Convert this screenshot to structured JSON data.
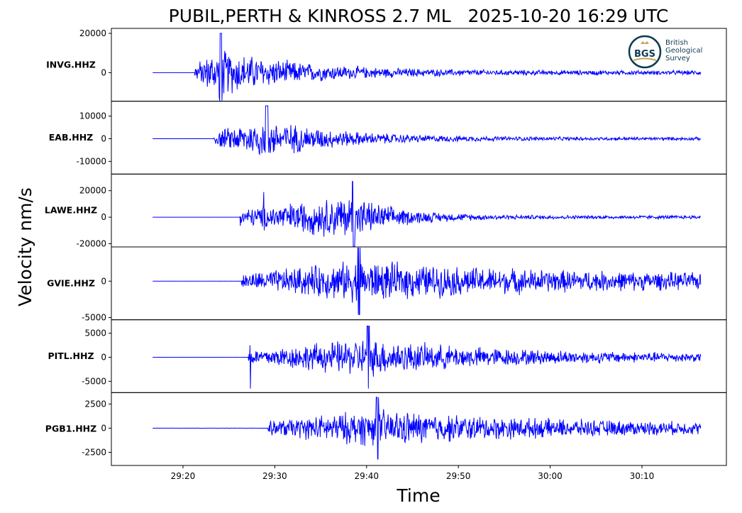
{
  "chart_data": {
    "type": "line",
    "title": "PUBIL,PERTH & KINROSS 2.7 ML   2025-10-20 16:29 UTC",
    "xlabel": "Time",
    "ylabel": "Velocity nm/s",
    "line_color": "#0000ff",
    "x_unit": "seconds after 16:29:00",
    "xlim": [
      12.2,
      79.2
    ],
    "x_ticks": [
      {
        "v": 20,
        "label": "29:20"
      },
      {
        "v": 30,
        "label": "29:30"
      },
      {
        "v": 40,
        "label": "29:40"
      },
      {
        "v": 50,
        "label": "29:50"
      },
      {
        "v": 60,
        "label": "30:00"
      },
      {
        "v": 70,
        "label": "30:10"
      }
    ],
    "trace_start": 16.7,
    "trace_end": 76.4,
    "logo": {
      "abbr": "BGS",
      "text": [
        "British",
        "Geological",
        "Survey"
      ],
      "color": "#0d3b4f",
      "accent": "#c8a45a"
    },
    "series": [
      {
        "name": "INVG.HHZ",
        "ylim": [
          -14545,
          22545
        ],
        "yticks": [
          {
            "v": 20000,
            "label": "20000"
          },
          {
            "v": 0,
            "label": "0"
          }
        ],
        "onset": 21.3,
        "peak_time": 24.0,
        "peak_amp": 20000,
        "decay": 9,
        "coda": 1200,
        "spikes": []
      },
      {
        "name": "EAB.HHZ",
        "ylim": [
          -15625,
          16560
        ],
        "yticks": [
          {
            "v": 10000,
            "label": "10000"
          },
          {
            "v": 0,
            "label": "0"
          },
          {
            "v": -10000,
            "label": "-10000"
          }
        ],
        "onset": 23.4,
        "peak_time": 29.0,
        "peak_amp": 14500,
        "decay": 8,
        "coda": 800,
        "spikes": []
      },
      {
        "name": "LAWE.HHZ",
        "ylim": [
          -22400,
          32500
        ],
        "yticks": [
          {
            "v": 20000,
            "label": "20000"
          },
          {
            "v": 0,
            "label": "0"
          },
          {
            "v": -20000,
            "label": "-20000"
          }
        ],
        "onset": 26.2,
        "peak_time": 38.4,
        "peak_amp": 27000,
        "decay": 5,
        "coda": 1500,
        "spikes": [
          {
            "t": 28.8,
            "amp": 19000,
            "neg": -10000
          }
        ]
      },
      {
        "name": "GVIE.HHZ",
        "ylim": [
          -5300,
          4700
        ],
        "yticks": [
          {
            "v": 0,
            "label": "0"
          },
          {
            "v": -5000,
            "label": "-5000"
          }
        ],
        "onset": 26.4,
        "peak_time": 39.0,
        "peak_amp": 4600,
        "decay": 22,
        "coda": 900,
        "spikes": []
      },
      {
        "name": "PITL.HHZ",
        "ylim": [
          -7350,
          7800
        ],
        "yticks": [
          {
            "v": 5000,
            "label": "5000"
          },
          {
            "v": 0,
            "label": "0"
          },
          {
            "v": -5000,
            "label": "-5000"
          }
        ],
        "onset": 27.1,
        "peak_time": 40.0,
        "peak_amp": 6500,
        "decay": 14,
        "coda": 800,
        "spikes": [
          {
            "t": 27.3,
            "amp": 2500,
            "neg": -6500
          }
        ]
      },
      {
        "name": "PGB1.HHZ",
        "ylim": [
          -3860,
          3680
        ],
        "yticks": [
          {
            "v": 2500,
            "label": "2500"
          },
          {
            "v": 0,
            "label": "0"
          },
          {
            "v": -2500,
            "label": "-2500"
          }
        ],
        "onset": 29.3,
        "peak_time": 41.0,
        "peak_amp": 3200,
        "decay": 18,
        "coda": 500,
        "spikes": []
      }
    ]
  }
}
